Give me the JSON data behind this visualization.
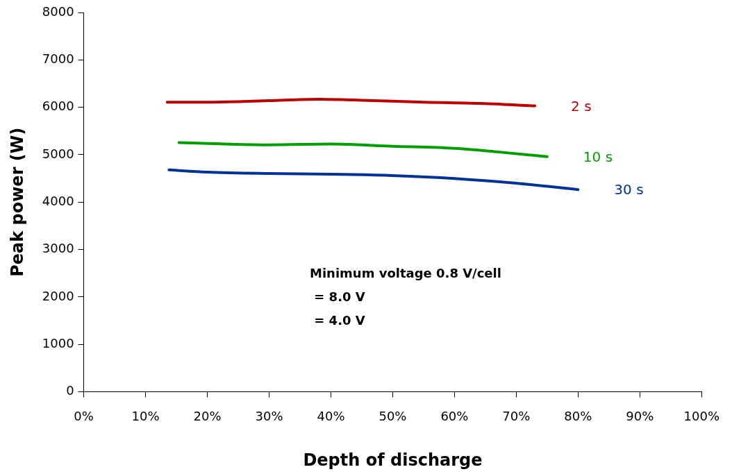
{
  "chart_data": {
    "type": "line",
    "xlabel": "Depth of discharge",
    "ylabel": "Peak power (W)",
    "xlim": [
      0,
      100
    ],
    "xticks": [
      {
        "value": 0,
        "label": "0%"
      },
      {
        "value": 10,
        "label": "10%"
      },
      {
        "value": 20,
        "label": "20%"
      },
      {
        "value": 30,
        "label": "30%"
      },
      {
        "value": 40,
        "label": "40%"
      },
      {
        "value": 50,
        "label": "50%"
      },
      {
        "value": 60,
        "label": "60%"
      },
      {
        "value": 70,
        "label": "70%"
      },
      {
        "value": 80,
        "label": "80%"
      },
      {
        "value": 90,
        "label": "90%"
      },
      {
        "value": 100,
        "label": "100%"
      }
    ],
    "ylim": [
      0,
      8000
    ],
    "yticks": [
      0,
      1000,
      2000,
      3000,
      4000,
      5000,
      6000,
      7000,
      8000
    ],
    "grid": false,
    "legend": false,
    "marker": "none",
    "line_style": "solid",
    "series": [
      {
        "name": "2 s",
        "color": "#c00000",
        "x": [
          13.5,
          20,
          25,
          30,
          38,
          45,
          55,
          65,
          73
        ],
        "values": [
          6110,
          6110,
          6120,
          6140,
          6170,
          6150,
          6110,
          6080,
          6030
        ]
      },
      {
        "name": "10 s",
        "color": "#00a000",
        "x": [
          15.4,
          22,
          30,
          40,
          50,
          60,
          67,
          75
        ],
        "values": [
          5255,
          5230,
          5210,
          5225,
          5180,
          5135,
          5060,
          4960
        ]
      },
      {
        "name": "30 s",
        "color": "#003399",
        "x": [
          13.8,
          20,
          30,
          40,
          50,
          60,
          70,
          80
        ],
        "values": [
          4680,
          4635,
          4605,
          4590,
          4560,
          4500,
          4400,
          4265
        ]
      }
    ],
    "annotations": [
      "Minimum voltage 0.8 V/cell",
      " = 8.0 V",
      " = 4.0 V"
    ]
  }
}
